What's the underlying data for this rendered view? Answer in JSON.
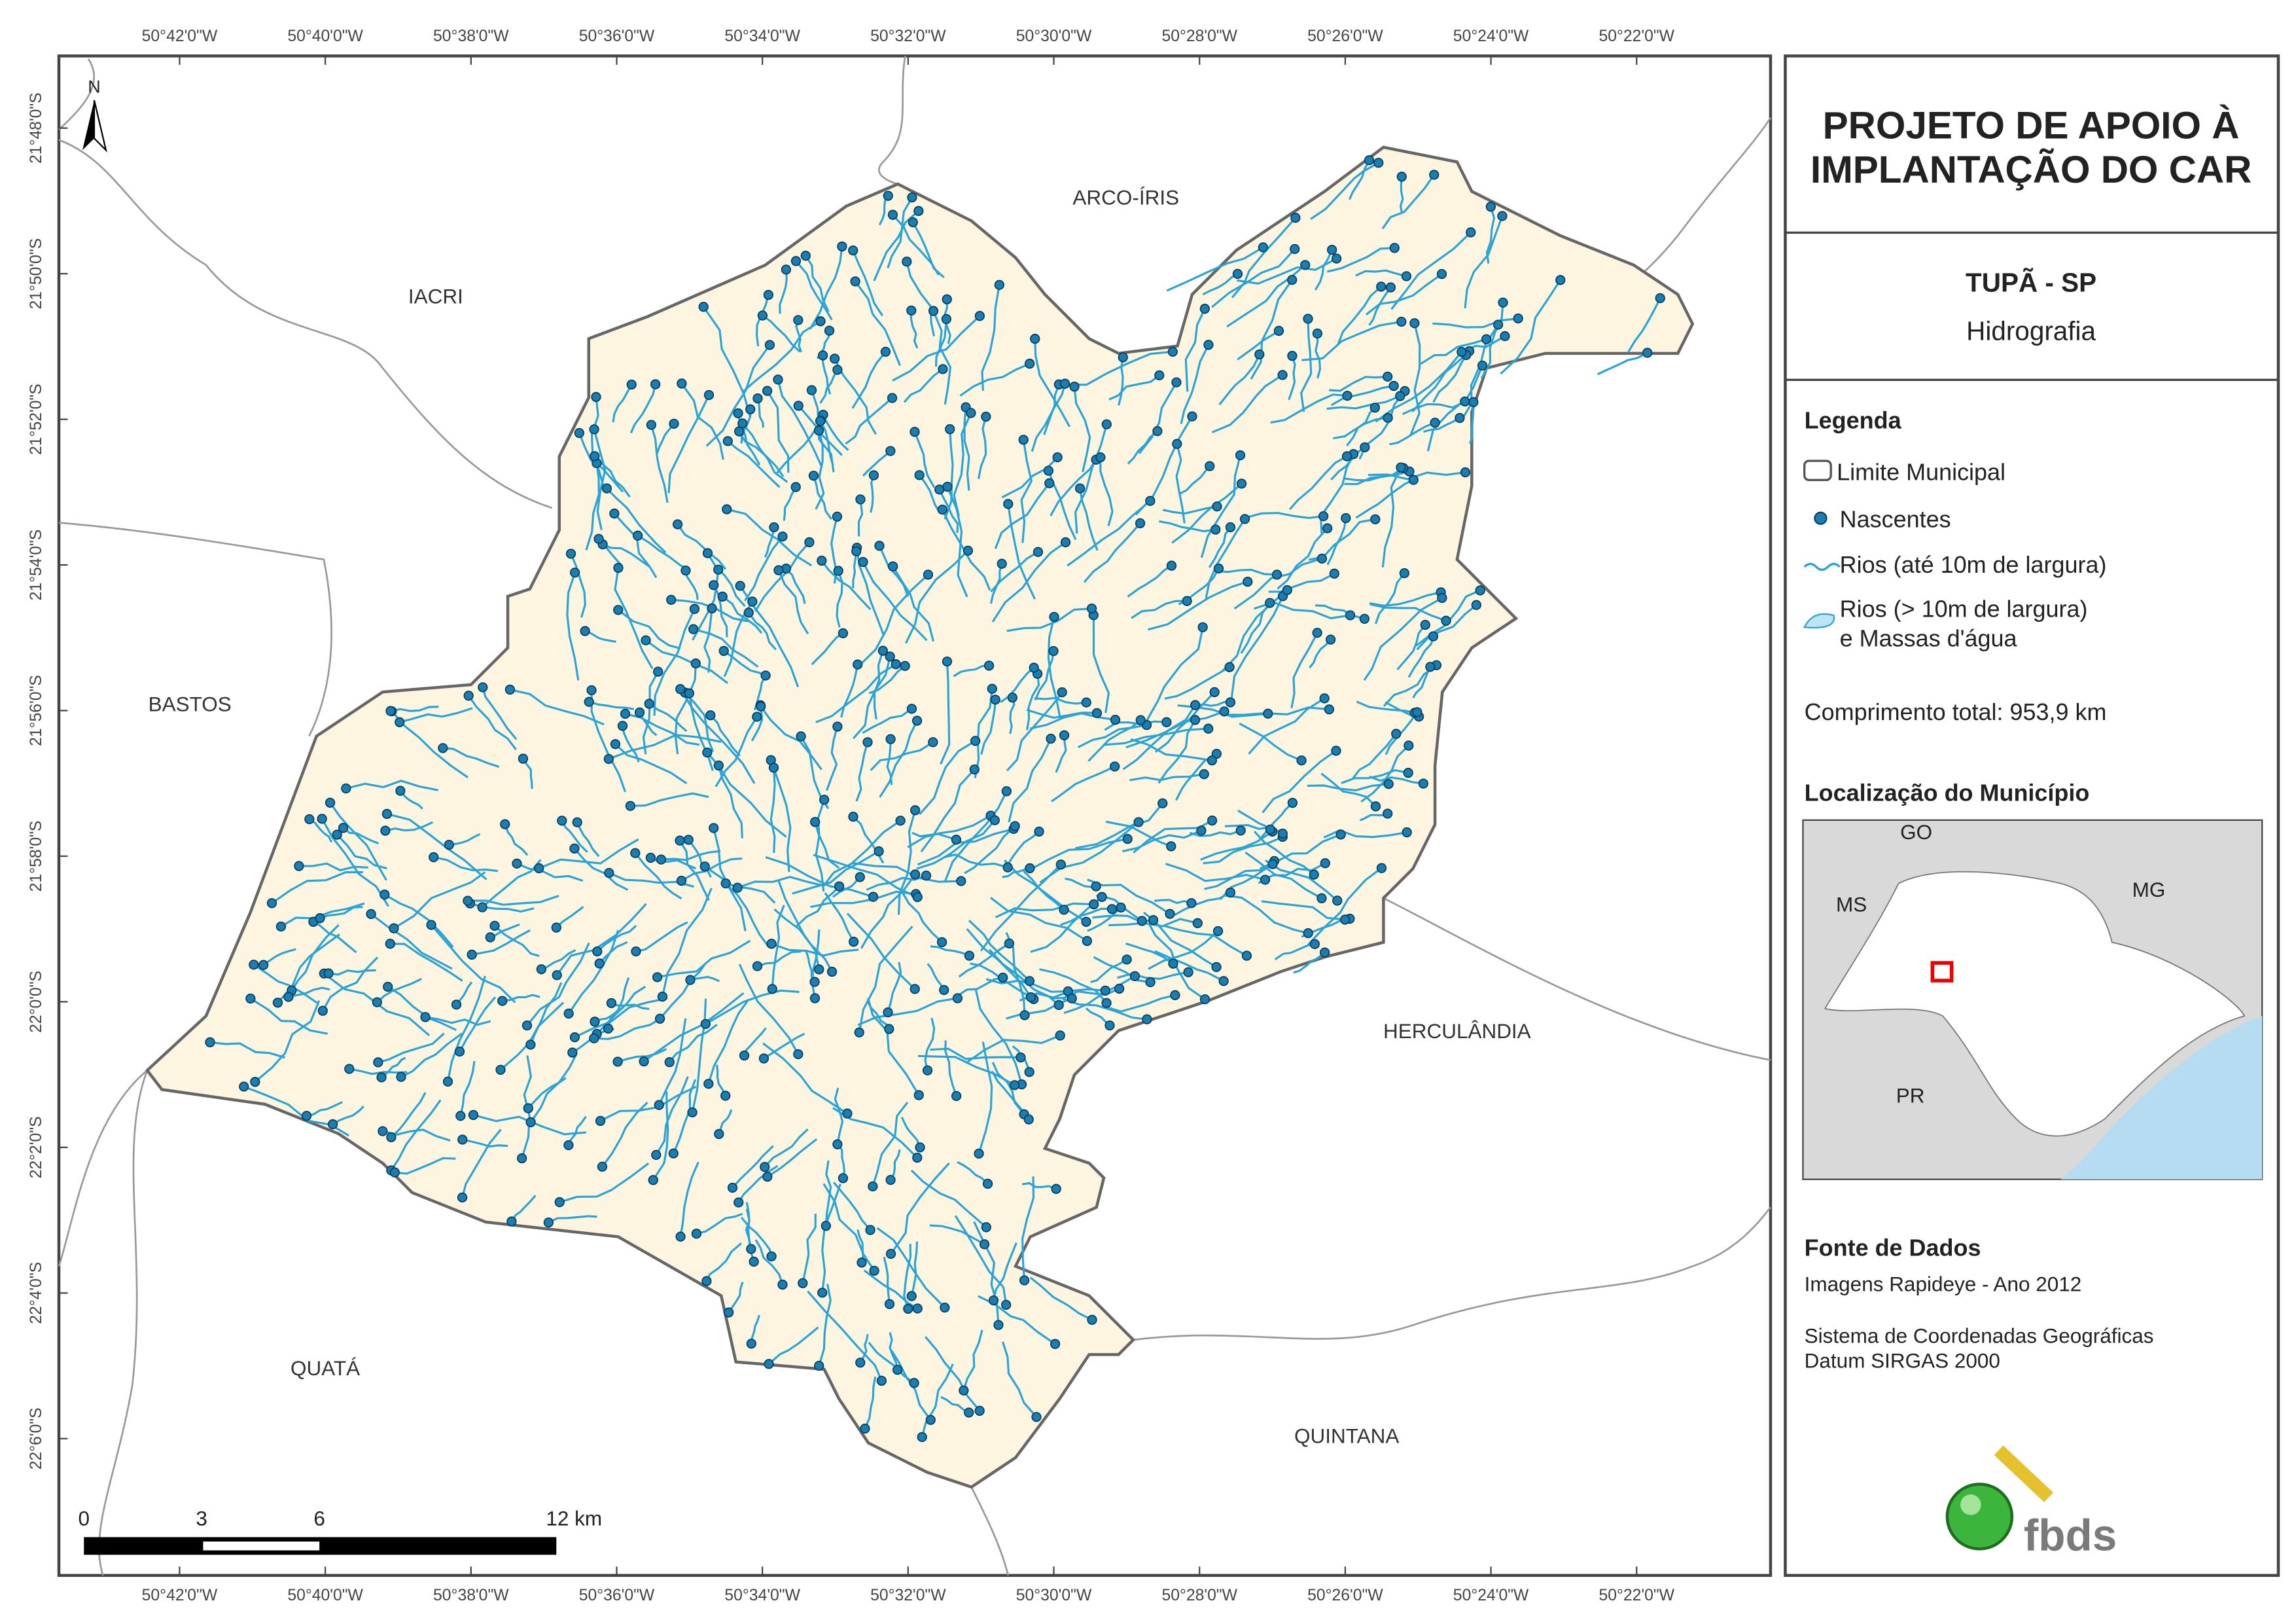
{
  "map": {
    "top_labels": [
      "50°42'0\"W",
      "50°40'0\"W",
      "50°38'0\"W",
      "50°36'0\"W",
      "50°34'0\"W",
      "50°32'0\"W",
      "50°30'0\"W",
      "50°28'0\"W",
      "50°26'0\"W",
      "50°24'0\"W",
      "50°22'0\"W"
    ],
    "bottom_labels": [
      "50°42'0\"W",
      "50°40'0\"W",
      "50°38'0\"W",
      "50°36'0\"W",
      "50°34'0\"W",
      "50°32'0\"W",
      "50°30'0\"W",
      "50°28'0\"W",
      "50°26'0\"W",
      "50°24'0\"W",
      "50°22'0\"W"
    ],
    "left_labels": [
      "21°48'0\"S",
      "21°50'0\"S",
      "21°52'0\"S",
      "21°54'0\"S",
      "21°56'0\"S",
      "21°58'0\"S",
      "22°0'0\"S",
      "22°2'0\"S",
      "22°4'0\"S",
      "22°6'0\"S"
    ],
    "places": [
      "ARCO-ÍRIS",
      "IACRI",
      "BASTOS",
      "HERCULÂNDIA",
      "QUATÁ",
      "QUINTANA"
    ],
    "north": "N",
    "scale": [
      "0",
      "3",
      "6",
      "12 km"
    ]
  },
  "panel": {
    "title": [
      "PROJETO DE APOIO À",
      "IMPLANTAÇÃO DO CAR"
    ],
    "subtitle": "TUPÃ - SP",
    "theme": "Hidrografia",
    "legend": {
      "title": "Legenda",
      "items": [
        [
          "Limite Municipal"
        ],
        [
          "Nascentes"
        ],
        [
          "Rios (até 10m de largura)"
        ],
        [
          "Rios (> 10m de largura)",
          "e Massas d'água"
        ]
      ],
      "total": "Comprimento total: 953,9 km"
    },
    "location": {
      "title": "Localização do Município",
      "labels": [
        "GO",
        "MS",
        "MG",
        "PR"
      ]
    },
    "source": {
      "title": "Fonte de Dados",
      "lines": [
        "Imagens Rapideye - Ano 2012",
        "Sistema de Coordenadas Geográficas",
        "Datum SIRGAS 2000"
      ]
    },
    "logo": "fbds"
  }
}
